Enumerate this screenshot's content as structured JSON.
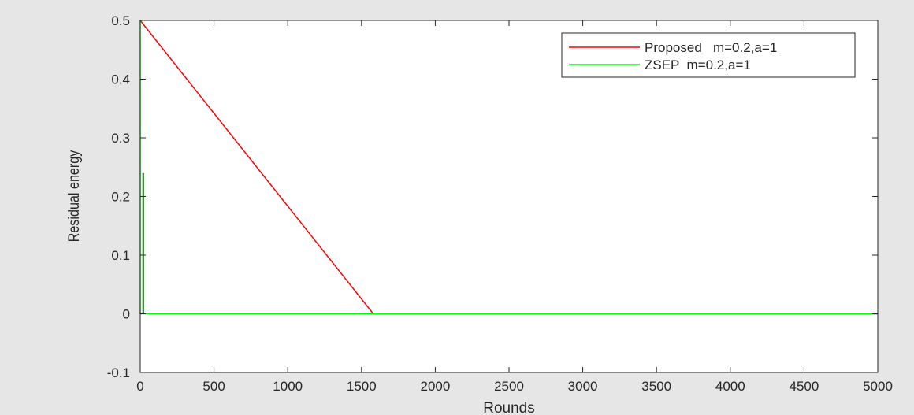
{
  "chart_data": {
    "type": "line",
    "xlabel": "Rounds",
    "ylabel": "Residual energy",
    "xlim": [
      0,
      5000
    ],
    "ylim": [
      -0.1,
      0.5
    ],
    "xticks": [
      0,
      500,
      1000,
      1500,
      2000,
      2500,
      3000,
      3500,
      4000,
      4500,
      5000
    ],
    "yticks": [
      -0.1,
      0,
      0.1,
      0.2,
      0.3,
      0.4,
      0.5
    ],
    "xtick_labels": [
      "0",
      "500",
      "1000",
      "1500",
      "2000",
      "2500",
      "3000",
      "3500",
      "4000",
      "4500",
      "5000"
    ],
    "ytick_labels": [
      "-0.1",
      "0",
      "0.1",
      "0.2",
      "0.3",
      "0.4",
      "0.5"
    ],
    "grid": false,
    "legend_position": "top-right",
    "series": [
      {
        "name": "Proposed   m=0.2,a=1",
        "color": "#ff0000",
        "x": [
          0,
          1580,
          5000
        ],
        "y": [
          0.5,
          0,
          0
        ]
      },
      {
        "name": "ZSEP  m=0.2,a=1",
        "color": "#00ff00",
        "x": [
          0,
          0,
          20,
          5000
        ],
        "y": [
          0.5,
          0,
          0,
          0
        ]
      }
    ],
    "dark_spike": {
      "color": "#006400",
      "x": [
        20,
        20
      ],
      "y": [
        0.24,
        0
      ]
    }
  }
}
